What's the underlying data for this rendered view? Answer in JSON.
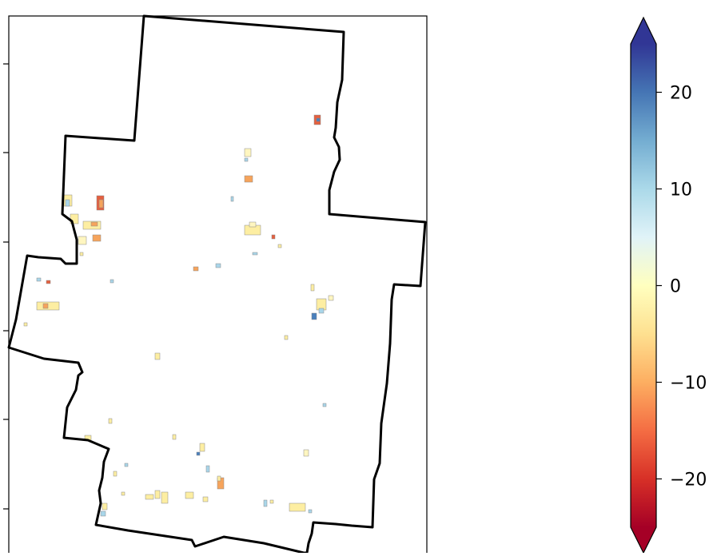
{
  "map": {
    "boundary_color": "#000000",
    "patch_colors": {
      "yellow": "#fdeea2",
      "pale_yellow": "#fff6c0",
      "orange": "#f6a45c",
      "red_orange": "#e4603f",
      "light_blue": "#a9d6ea",
      "blue": "#4a80bd"
    }
  },
  "colorbar": {
    "range": [
      -25,
      25
    ],
    "extend": "both",
    "ticks": [
      {
        "value": 20,
        "label": "20"
      },
      {
        "value": 10,
        "label": "10"
      },
      {
        "value": 0,
        "label": "0"
      },
      {
        "value": -10,
        "label": "−10"
      },
      {
        "value": -20,
        "label": "−20"
      }
    ],
    "colormap": [
      "#a50026",
      "#d73027",
      "#f46d43",
      "#fdae61",
      "#fee090",
      "#ffffbf",
      "#e0f3f8",
      "#abd9e9",
      "#74add1",
      "#4575b4",
      "#313695"
    ]
  }
}
